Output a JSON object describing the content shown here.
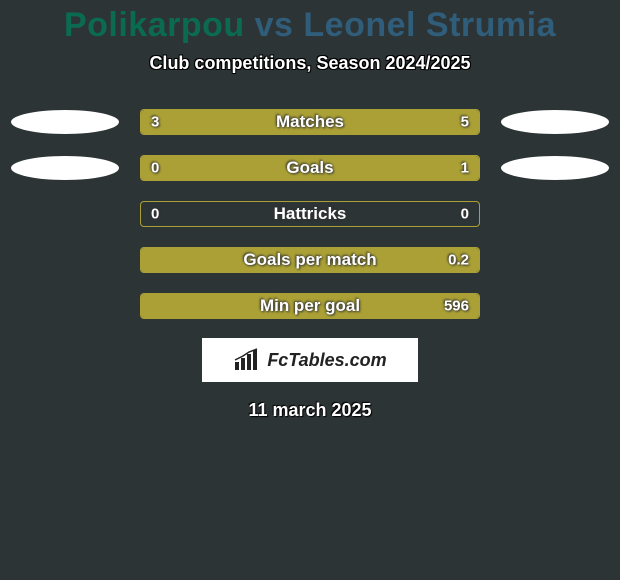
{
  "title": {
    "player1": "Polikarpou",
    "vs": "vs",
    "player2": "Leonel Strumia",
    "player1_color": "#0b6b52",
    "vs_color": "#2f5d7a",
    "player2_color": "#2f5d7a"
  },
  "subtitle": "Club competitions, Season 2024/2025",
  "date": "11 march 2025",
  "logo_text": "FcTables.com",
  "colors": {
    "background": "#2d3436",
    "bar_fill": "#aaa035",
    "bar_border": "#aaa035",
    "ellipse": "#ffffff",
    "text": "#ffffff"
  },
  "stats": [
    {
      "label": "Matches",
      "left_value": "3",
      "right_value": "5",
      "left_pct": 37.5,
      "right_pct": 62.5,
      "show_left_ellipse": true,
      "show_right_ellipse": true
    },
    {
      "label": "Goals",
      "left_value": "0",
      "right_value": "1",
      "left_pct": 0,
      "right_pct": 100,
      "show_left_ellipse": true,
      "show_right_ellipse": true
    },
    {
      "label": "Hattricks",
      "left_value": "0",
      "right_value": "0",
      "left_pct": 0,
      "right_pct": 0,
      "show_left_ellipse": false,
      "show_right_ellipse": false
    },
    {
      "label": "Goals per match",
      "left_value": "",
      "right_value": "0.2",
      "left_pct": 0,
      "right_pct": 100,
      "show_left_ellipse": false,
      "show_right_ellipse": false
    },
    {
      "label": "Min per goal",
      "left_value": "",
      "right_value": "596",
      "left_pct": 0,
      "right_pct": 100,
      "show_left_ellipse": false,
      "show_right_ellipse": false
    }
  ]
}
